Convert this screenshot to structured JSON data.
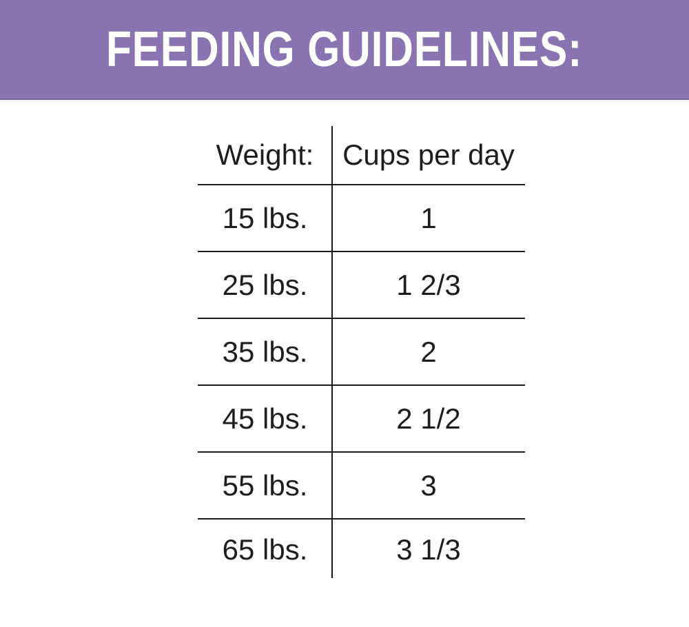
{
  "banner": {
    "title": "FEEDING GUIDELINES:"
  },
  "table": {
    "columns": [
      {
        "label": "Weight:"
      },
      {
        "label": "Cups per day"
      }
    ],
    "rows": [
      {
        "weight": "15 lbs.",
        "cups": "1"
      },
      {
        "weight": "25 lbs.",
        "cups": "1 2/3"
      },
      {
        "weight": "35 lbs.",
        "cups": "2"
      },
      {
        "weight": "45 lbs.",
        "cups": "2 1/2"
      },
      {
        "weight": "55 lbs.",
        "cups": "3"
      },
      {
        "weight": "65 lbs.",
        "cups": "3 1/3"
      }
    ]
  },
  "colors": {
    "banner_background": "#8973b0",
    "banner_text": "#ffffff",
    "table_text": "#1d1d1d",
    "rule_line": "#1a1a1a",
    "page_background": "#ffffff"
  }
}
